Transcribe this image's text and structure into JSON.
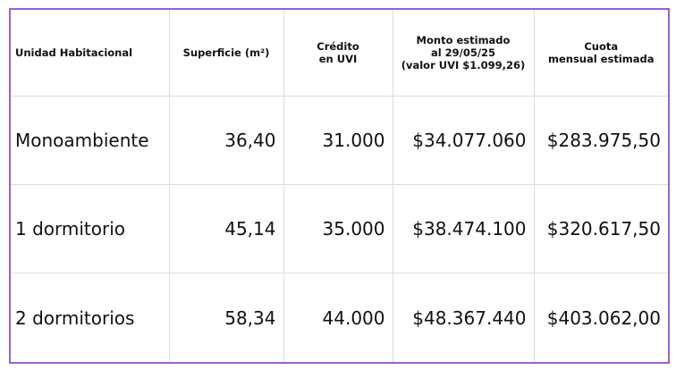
{
  "table": {
    "headers": {
      "unidad": "Unidad Habitacional",
      "superficie": "Superficie (m²)",
      "credito": [
        "Crédito",
        "en UVI"
      ],
      "monto": [
        "Monto estimado",
        "al 29/05/25",
        "(valor UVI $1.099,26)"
      ],
      "cuota": [
        "Cuota",
        "mensual estimada"
      ]
    },
    "rows": [
      {
        "unidad": "Monoambiente",
        "superficie": "36,40",
        "credito": "31.000",
        "monto": "$34.077.060",
        "cuota": "$283.975,50"
      },
      {
        "unidad": "1 dormitorio",
        "superficie": "45,14",
        "credito": "35.000",
        "monto": "$38.474.100",
        "cuota": "$320.617,50"
      },
      {
        "unidad": "2 dormitorios",
        "superficie": "58,34",
        "credito": "44.000",
        "monto": "$48.367.440",
        "cuota": "$403.062,00"
      }
    ]
  },
  "colors": {
    "frame_border": "#9b5fd6",
    "grid_line": "#dcdcdc",
    "text": "#111111"
  }
}
